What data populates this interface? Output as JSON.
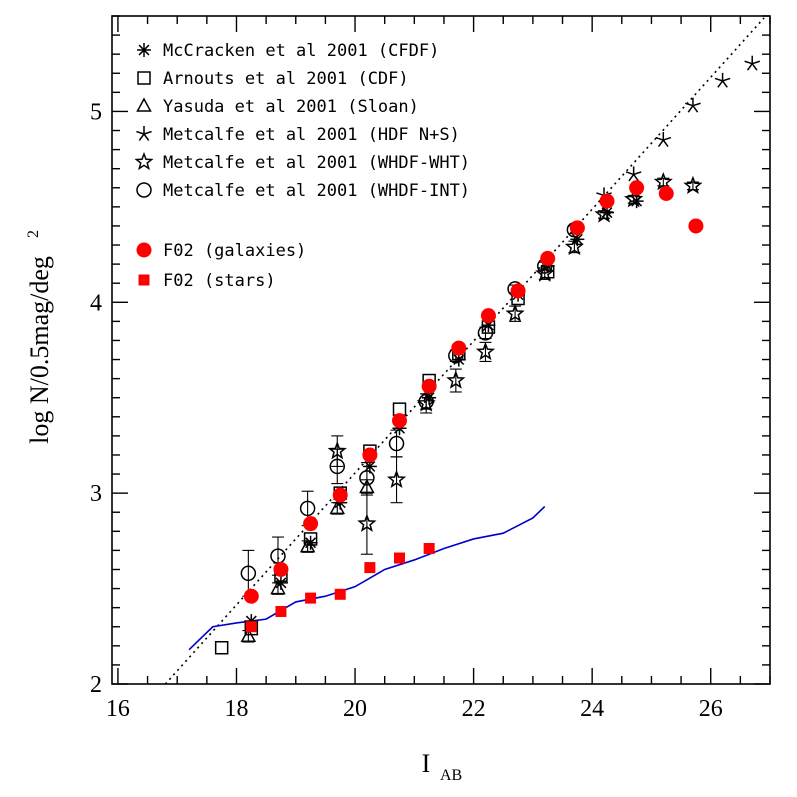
{
  "chart_data": {
    "type": "scatter",
    "xlabel": "I",
    "xlabel_sub": "AB",
    "ylabel": "log N/0.5mag/deg",
    "ylabel_sup": "2",
    "xlim": [
      15.9,
      27.0
    ],
    "ylim": [
      2.0,
      5.5
    ],
    "x_ticks": [
      "16",
      "18",
      "20",
      "22",
      "24",
      "26"
    ],
    "y_ticks": [
      "2",
      "3",
      "4",
      "5"
    ],
    "grid": false,
    "legend_placement": "top-left",
    "series": [
      {
        "name": "McCracken et al 2001 (CFDF)",
        "marker": "asterisk",
        "points": [
          {
            "x": 18.25,
            "y": 2.33,
            "err": 0.0
          },
          {
            "x": 18.75,
            "y": 2.53,
            "err": 0.0
          },
          {
            "x": 19.25,
            "y": 2.74,
            "err": 0.0
          },
          {
            "x": 19.75,
            "y": 2.95,
            "err": 0.0
          },
          {
            "x": 20.25,
            "y": 3.14,
            "err": 0.0
          },
          {
            "x": 20.75,
            "y": 3.34,
            "err": 0.0
          },
          {
            "x": 21.25,
            "y": 3.5,
            "err": 0.0
          },
          {
            "x": 21.75,
            "y": 3.7,
            "err": 0.0
          },
          {
            "x": 22.25,
            "y": 3.88,
            "err": 0.0
          },
          {
            "x": 22.75,
            "y": 4.04,
            "err": 0.0
          },
          {
            "x": 23.25,
            "y": 4.19,
            "err": 0.0
          },
          {
            "x": 23.75,
            "y": 4.33,
            "err": 0.0
          },
          {
            "x": 24.25,
            "y": 4.47,
            "err": 0.0
          },
          {
            "x": 24.75,
            "y": 4.53,
            "err": 0.0
          }
        ]
      },
      {
        "name": "Arnouts et al 2001 (CDF)",
        "marker": "square",
        "points": [
          {
            "x": 17.75,
            "y": 2.19,
            "err": 0.0
          },
          {
            "x": 18.25,
            "y": 2.29,
            "err": 0.0
          },
          {
            "x": 18.75,
            "y": 2.57,
            "err": 0.0
          },
          {
            "x": 19.25,
            "y": 2.76,
            "err": 0.0
          },
          {
            "x": 19.75,
            "y": 3.0,
            "err": 0.0
          },
          {
            "x": 20.25,
            "y": 3.22,
            "err": 0.0
          },
          {
            "x": 20.75,
            "y": 3.44,
            "err": 0.0
          },
          {
            "x": 21.25,
            "y": 3.59,
            "err": 0.0
          },
          {
            "x": 21.75,
            "y": 3.73,
            "err": 0.0
          },
          {
            "x": 22.25,
            "y": 3.87,
            "err": 0.0
          },
          {
            "x": 22.75,
            "y": 4.02,
            "err": 0.0
          },
          {
            "x": 23.25,
            "y": 4.16,
            "err": 0.0
          }
        ]
      },
      {
        "name": "Yasuda et al 2001 (Sloan)",
        "marker": "triangle",
        "points": [
          {
            "x": 18.2,
            "y": 2.25,
            "err": 0.03
          },
          {
            "x": 18.7,
            "y": 2.5,
            "err": 0.03
          },
          {
            "x": 19.2,
            "y": 2.72,
            "err": 0.03
          },
          {
            "x": 19.7,
            "y": 2.92,
            "err": 0.03
          },
          {
            "x": 20.2,
            "y": 3.03,
            "err": 0.04
          }
        ]
      },
      {
        "name": "Metcalfe et al 2001 (HDF N+S)",
        "marker": "star5",
        "points": [
          {
            "x": 24.2,
            "y": 4.56,
            "err": 0.0
          },
          {
            "x": 24.7,
            "y": 4.67,
            "err": 0.0
          },
          {
            "x": 25.2,
            "y": 4.85,
            "err": 0.0
          },
          {
            "x": 25.7,
            "y": 5.03,
            "err": 0.0
          },
          {
            "x": 26.2,
            "y": 5.16,
            "err": 0.0
          },
          {
            "x": 26.7,
            "y": 5.25,
            "err": 0.0
          }
        ]
      },
      {
        "name": "Metcalfe et al 2001 (WHDF-WHT)",
        "marker": "openstar",
        "points": [
          {
            "x": 19.7,
            "y": 3.22,
            "err": 0.08
          },
          {
            "x": 20.2,
            "y": 2.84,
            "err": 0.16
          },
          {
            "x": 20.7,
            "y": 3.07,
            "err": 0.12
          },
          {
            "x": 21.2,
            "y": 3.47,
            "err": 0.05
          },
          {
            "x": 21.7,
            "y": 3.59,
            "err": 0.06
          },
          {
            "x": 22.2,
            "y": 3.74,
            "err": 0.05
          },
          {
            "x": 22.7,
            "y": 3.94,
            "err": 0.04
          },
          {
            "x": 23.2,
            "y": 4.15,
            "err": 0.03
          },
          {
            "x": 23.7,
            "y": 4.29,
            "err": 0.03
          },
          {
            "x": 24.2,
            "y": 4.46,
            "err": 0.02
          },
          {
            "x": 24.7,
            "y": 4.54,
            "err": 0.02
          },
          {
            "x": 25.2,
            "y": 4.63,
            "err": 0.02
          },
          {
            "x": 25.7,
            "y": 4.61,
            "err": 0.02
          }
        ]
      },
      {
        "name": "Metcalfe et al 2001 (WHDF-INT)",
        "marker": "circle",
        "points": [
          {
            "x": 18.2,
            "y": 2.58,
            "err": 0.12
          },
          {
            "x": 18.7,
            "y": 2.67,
            "err": 0.1
          },
          {
            "x": 19.2,
            "y": 2.92,
            "err": 0.09
          },
          {
            "x": 19.7,
            "y": 3.14,
            "err": 0.09
          },
          {
            "x": 20.2,
            "y": 3.08,
            "err": 0.08
          },
          {
            "x": 20.7,
            "y": 3.26,
            "err": 0.07
          },
          {
            "x": 21.2,
            "y": 3.48,
            "err": 0.04
          },
          {
            "x": 21.7,
            "y": 3.72,
            "err": 0.03
          },
          {
            "x": 22.2,
            "y": 3.84,
            "err": 0.03
          },
          {
            "x": 22.7,
            "y": 4.07,
            "err": 0.02
          },
          {
            "x": 23.2,
            "y": 4.19,
            "err": 0.02
          },
          {
            "x": 23.7,
            "y": 4.38,
            "err": 0.02
          }
        ]
      },
      {
        "name": "F02 (galaxies)",
        "marker": "filled-circle",
        "color": "#ff0000",
        "points": [
          {
            "x": 18.25,
            "y": 2.46
          },
          {
            "x": 18.75,
            "y": 2.6
          },
          {
            "x": 19.25,
            "y": 2.84
          },
          {
            "x": 19.75,
            "y": 2.99
          },
          {
            "x": 20.25,
            "y": 3.2
          },
          {
            "x": 20.75,
            "y": 3.38
          },
          {
            "x": 21.25,
            "y": 3.56
          },
          {
            "x": 21.75,
            "y": 3.76
          },
          {
            "x": 22.25,
            "y": 3.93
          },
          {
            "x": 22.75,
            "y": 4.06
          },
          {
            "x": 23.25,
            "y": 4.23
          },
          {
            "x": 23.75,
            "y": 4.39
          },
          {
            "x": 24.25,
            "y": 4.53
          },
          {
            "x": 24.75,
            "y": 4.6
          },
          {
            "x": 25.25,
            "y": 4.57
          },
          {
            "x": 25.75,
            "y": 4.4
          }
        ]
      },
      {
        "name": "F02 (stars)",
        "marker": "filled-square",
        "color": "#ff0000",
        "points": [
          {
            "x": 18.25,
            "y": 2.3
          },
          {
            "x": 18.75,
            "y": 2.38
          },
          {
            "x": 19.25,
            "y": 2.45
          },
          {
            "x": 19.75,
            "y": 2.47
          },
          {
            "x": 20.25,
            "y": 2.61
          },
          {
            "x": 20.75,
            "y": 2.66
          },
          {
            "x": 21.25,
            "y": 2.71
          }
        ]
      }
    ],
    "model_line": {
      "color": "#0000cc",
      "x": [
        17.2,
        17.6,
        18.0,
        18.5,
        19.0,
        19.5,
        20.0,
        20.5,
        21.0,
        21.5,
        22.0,
        22.5,
        23.0,
        23.2
      ],
      "y": [
        2.18,
        2.3,
        2.32,
        2.34,
        2.43,
        2.46,
        2.51,
        2.6,
        2.65,
        2.71,
        2.76,
        2.79,
        2.87,
        2.93
      ]
    },
    "reference_line": {
      "style": "dotted",
      "x": [
        16.8,
        26.9
      ],
      "y": [
        2.0,
        5.49
      ]
    }
  }
}
